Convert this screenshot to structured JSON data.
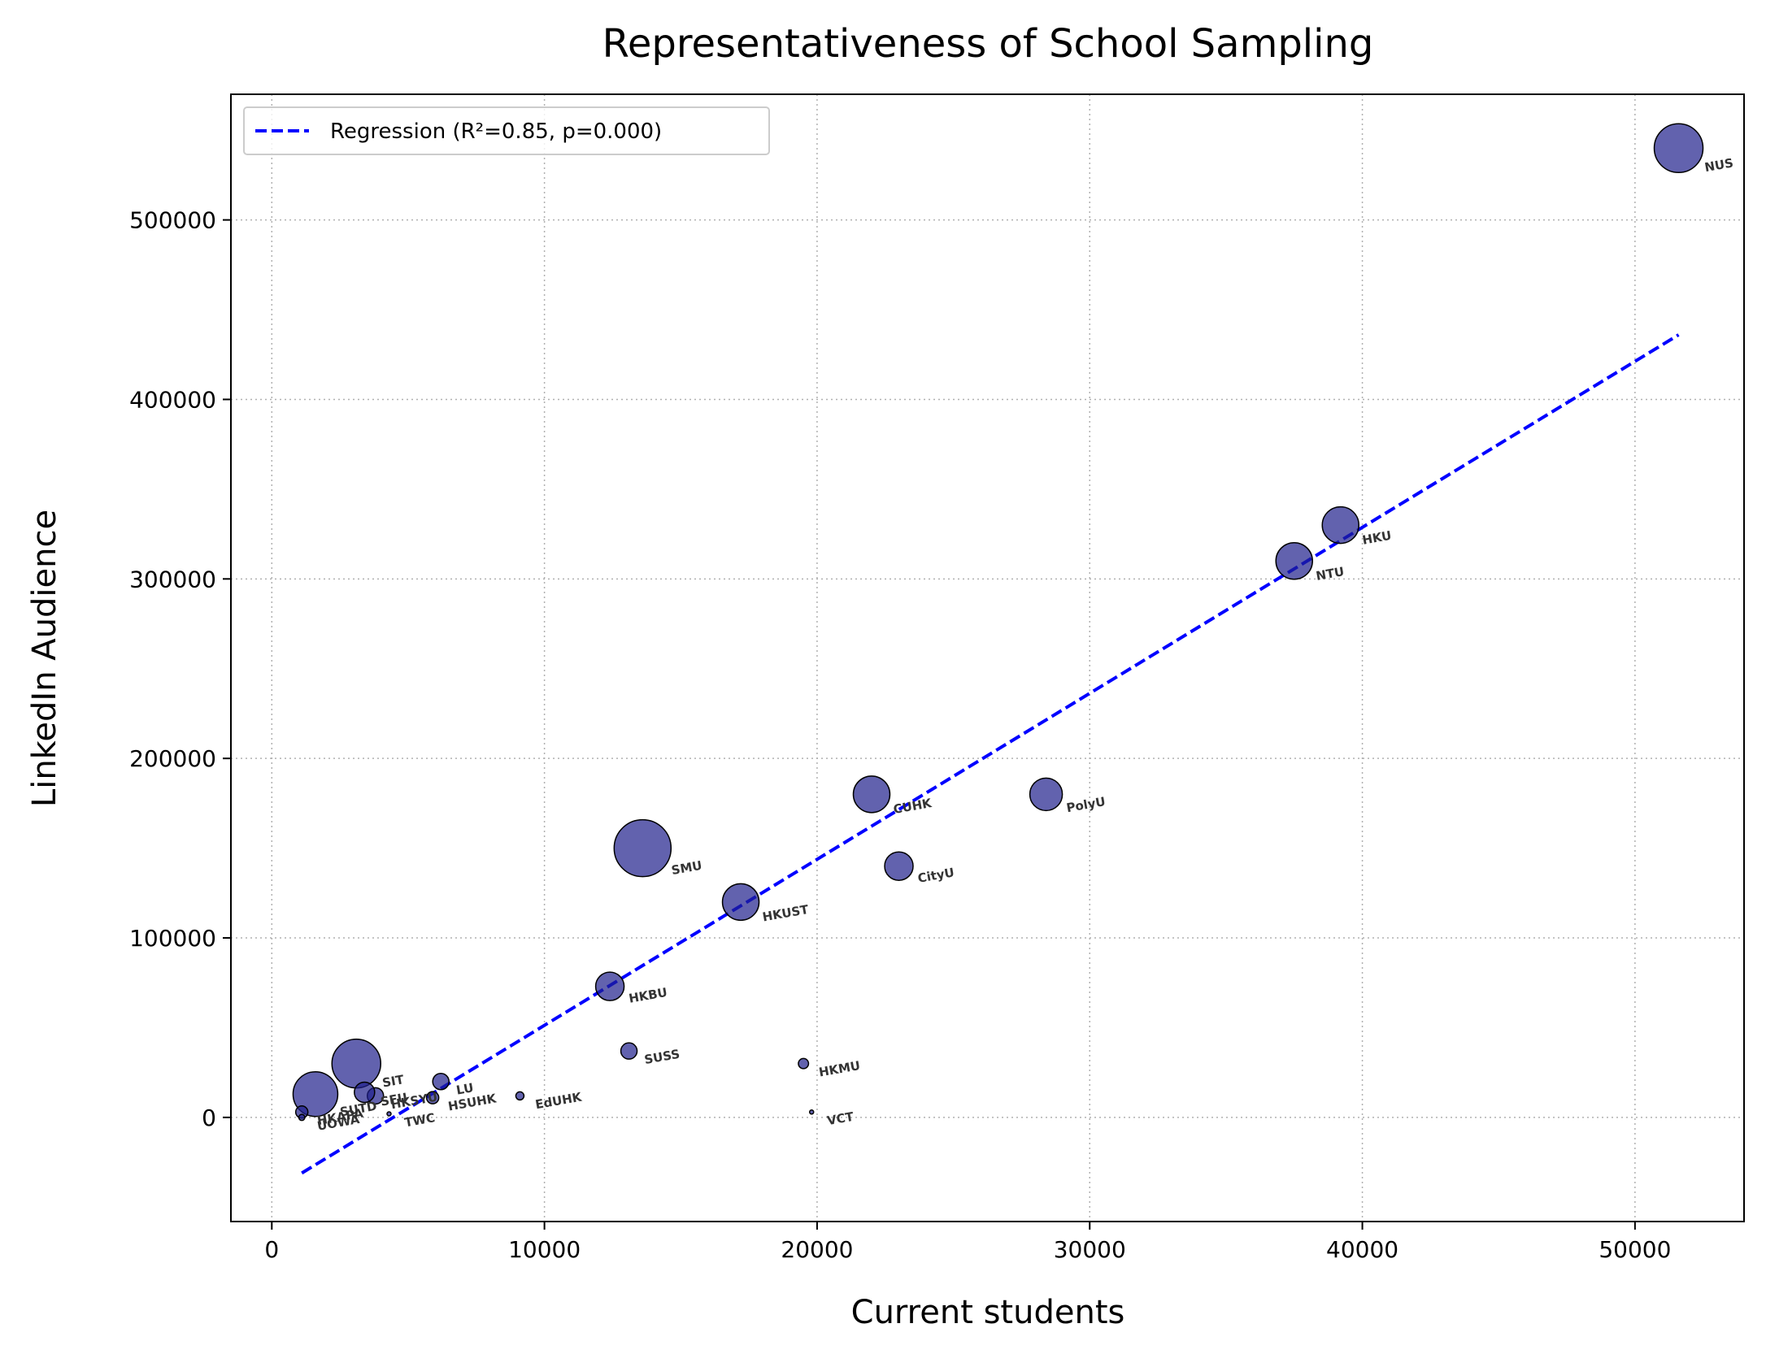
{
  "chart_data": {
    "type": "scatter",
    "title": "Representativeness of School Sampling",
    "xlabel": "Current students",
    "ylabel": "LinkedIn Audience",
    "xlim": [
      -1500,
      54000
    ],
    "ylim": [
      -58000,
      570000
    ],
    "xticks": [
      0,
      10000,
      20000,
      30000,
      40000,
      50000
    ],
    "yticks": [
      0,
      100000,
      200000,
      300000,
      400000,
      500000
    ],
    "grid": true,
    "legend_position": "upper-left",
    "colors": {
      "point_fill": "#1f1f8c",
      "point_edge": "#000000",
      "regression": "#0000ff",
      "label": "#333333"
    },
    "points": [
      {
        "label": "NUS",
        "x": 51600,
        "y": 540000,
        "size": 12
      },
      {
        "label": "HKU",
        "x": 39200,
        "y": 330000,
        "size": 9
      },
      {
        "label": "NTU",
        "x": 37500,
        "y": 310000,
        "size": 9
      },
      {
        "label": "PolyU",
        "x": 28400,
        "y": 180000,
        "size": 8
      },
      {
        "label": "CUHK",
        "x": 22000,
        "y": 180000,
        "size": 9
      },
      {
        "label": "CityU",
        "x": 23000,
        "y": 140000,
        "size": 7
      },
      {
        "label": "SMU",
        "x": 13600,
        "y": 150000,
        "size": 14
      },
      {
        "label": "HKUST",
        "x": 17200,
        "y": 120000,
        "size": 9
      },
      {
        "label": "HKBU",
        "x": 12400,
        "y": 73000,
        "size": 7
      },
      {
        "label": "SUSS",
        "x": 13100,
        "y": 37000,
        "size": 4
      },
      {
        "label": "HKMU",
        "x": 19500,
        "y": 30000,
        "size": 2.5
      },
      {
        "label": "VCT",
        "x": 19800,
        "y": 3000,
        "size": 0.2
      },
      {
        "label": "EdUHK",
        "x": 9100,
        "y": 12000,
        "size": 2
      },
      {
        "label": "SIT",
        "x": 3100,
        "y": 30000,
        "size": 12
      },
      {
        "label": "LU",
        "x": 6200,
        "y": 20000,
        "size": 4
      },
      {
        "label": "HSUHK",
        "x": 5900,
        "y": 11000,
        "size": 3
      },
      {
        "label": "HKSYU",
        "x": 3800,
        "y": 12000,
        "size": 4
      },
      {
        "label": "SFU",
        "x": 3400,
        "y": 14000,
        "size": 5
      },
      {
        "label": "TWC",
        "x": 4300,
        "y": 2000,
        "size": 0.2
      },
      {
        "label": "SUTD",
        "x": 1600,
        "y": 13000,
        "size": 11
      },
      {
        "label": "HKAPA",
        "x": 1100,
        "y": 3000,
        "size": 3
      },
      {
        "label": "UOWA",
        "x": 1100,
        "y": 0,
        "size": 1.5
      }
    ],
    "regression": {
      "label": "Regression (R²=0.85, p=0.000)",
      "x": [
        1100,
        51600
      ],
      "y": [
        -31000,
        436000
      ]
    }
  }
}
